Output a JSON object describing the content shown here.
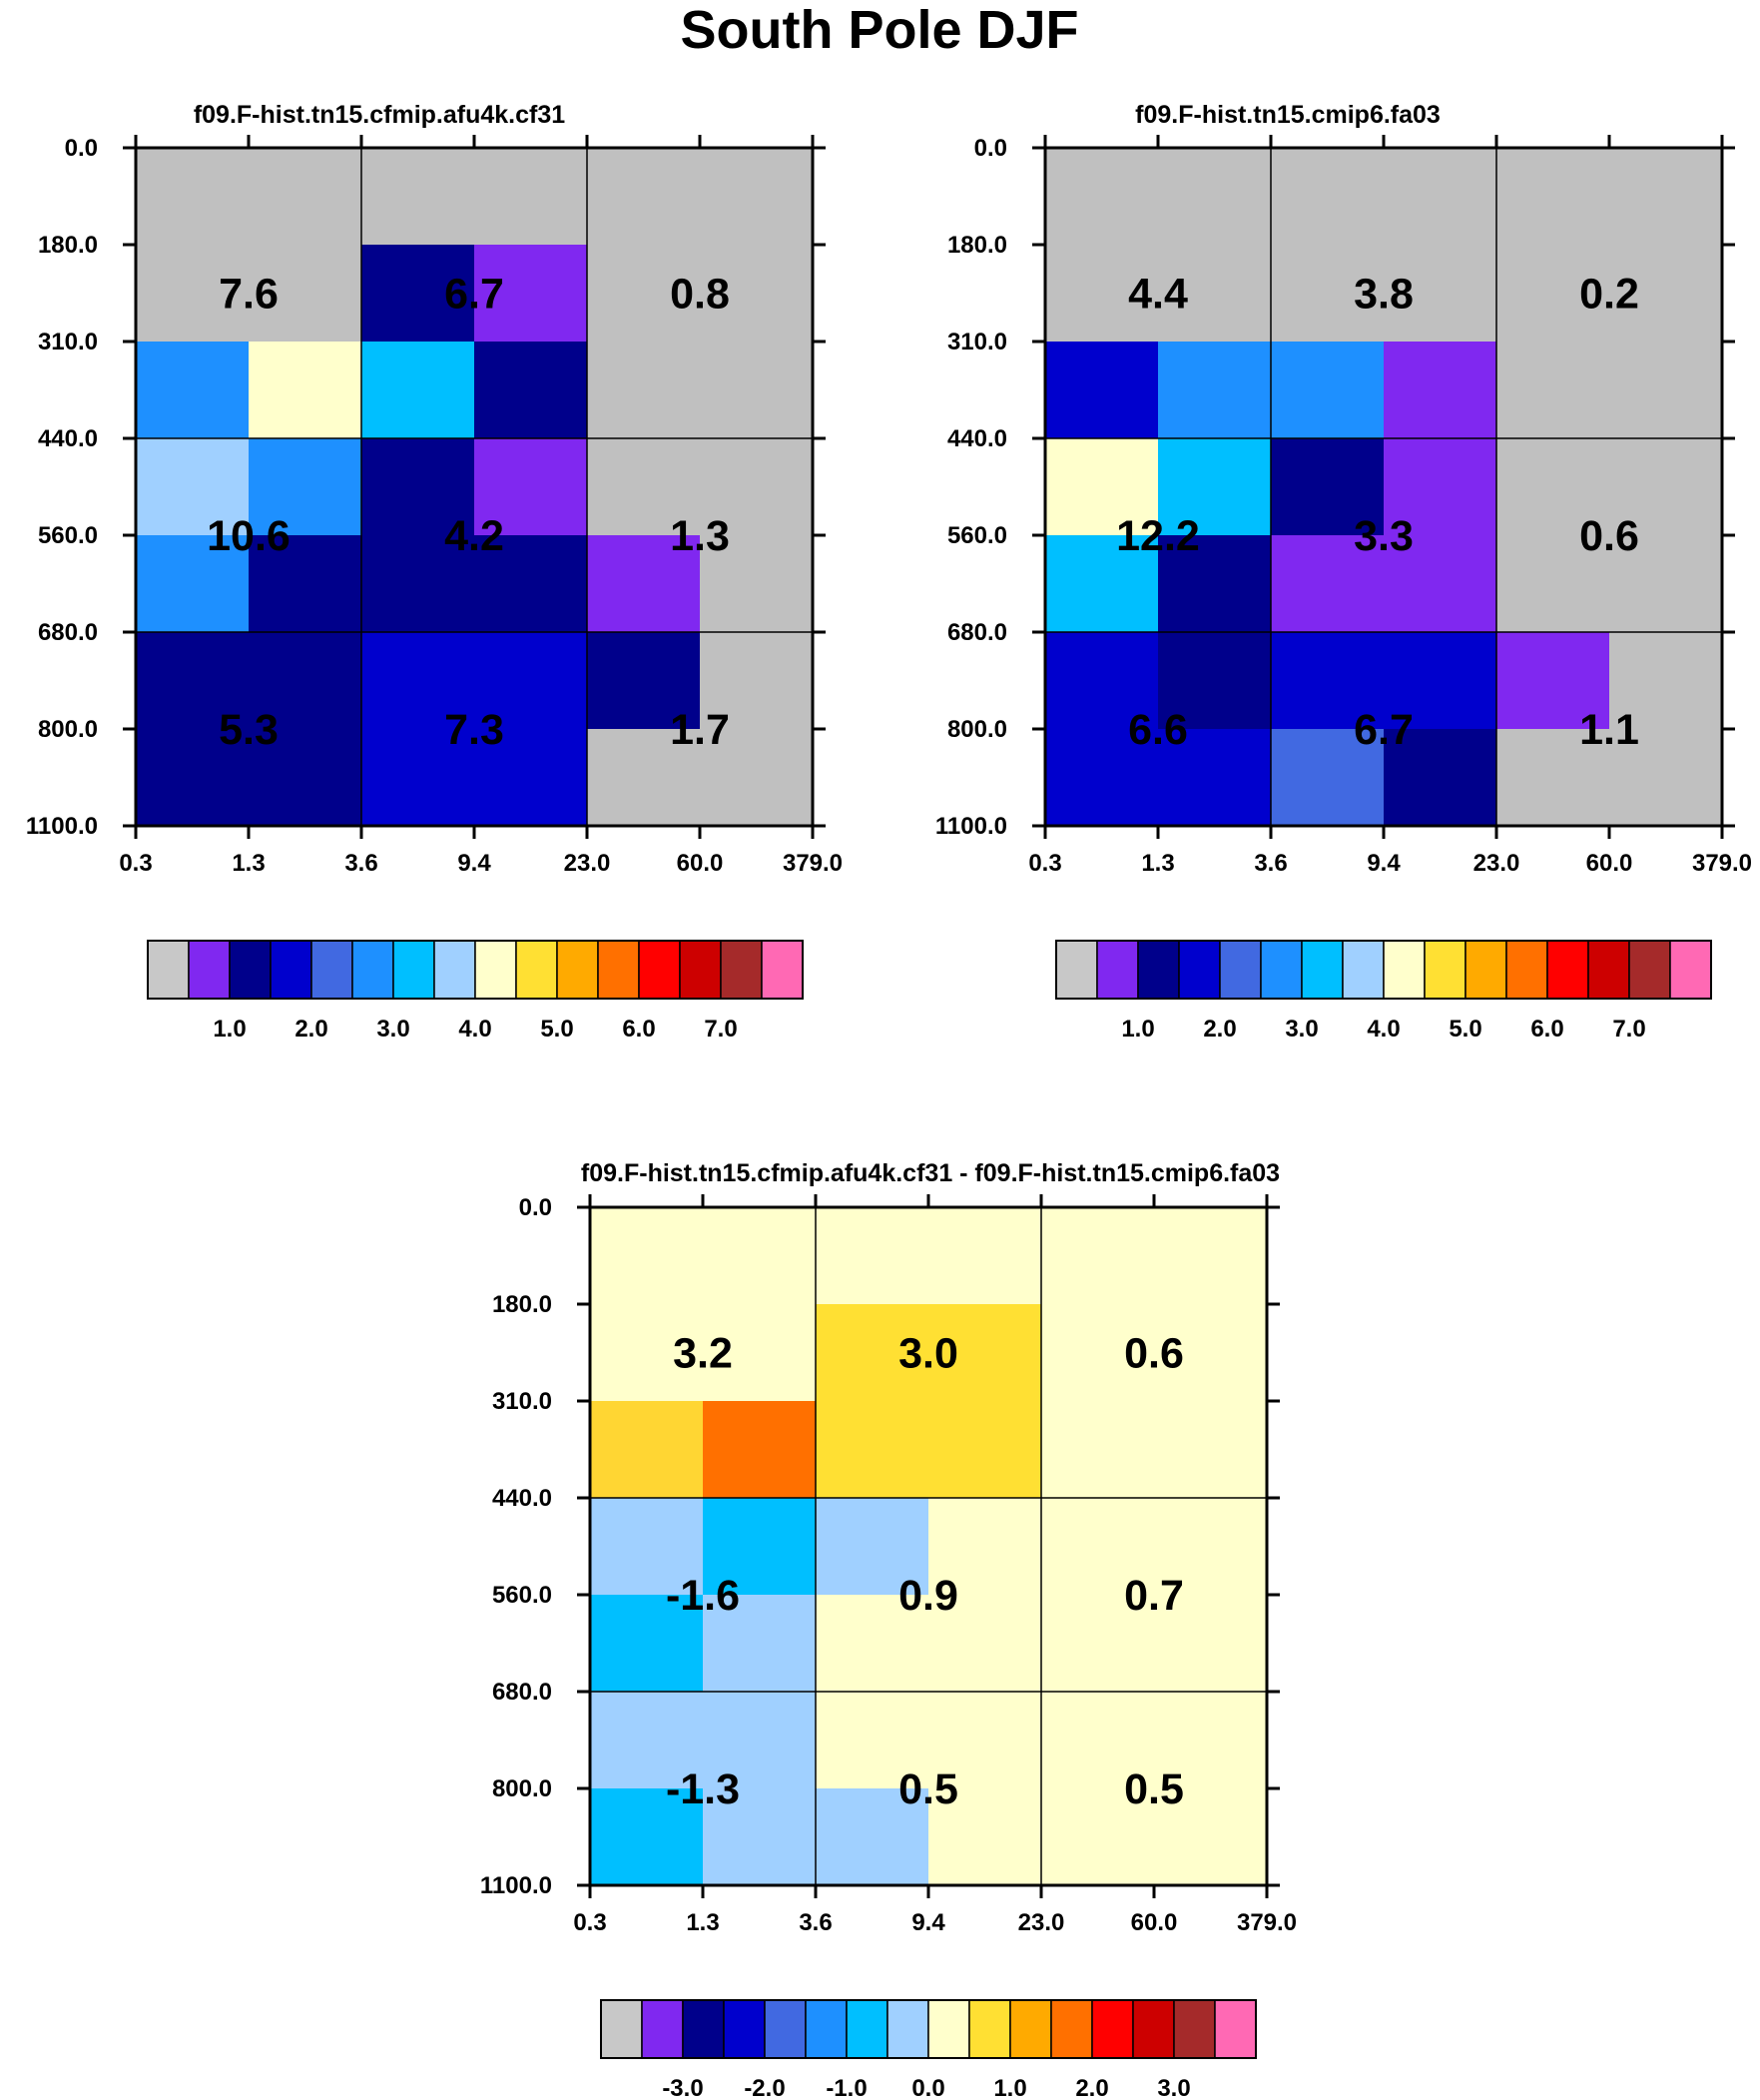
{
  "figure_title": "South Pole DJF",
  "chart_data": {
    "type": "heatmap",
    "x_tick_labels": [
      "0.3",
      "1.3",
      "3.6",
      "9.4",
      "23.0",
      "60.0",
      "379.0"
    ],
    "y_tick_labels": [
      "0.0",
      "180.0",
      "310.0",
      "440.0",
      "560.0",
      "680.0",
      "800.0",
      "1100.0"
    ],
    "panels": [
      {
        "title": "f09.F-hist.tn15.cfmip.afu4k.cf31",
        "cells": [
          [
            "#c0c0c0",
            "#c0c0c0",
            "#c0c0c0",
            "#c0c0c0",
            "#c0c0c0",
            "#c0c0c0"
          ],
          [
            "#c0c0c0",
            "#c0c0c0",
            "#00008b",
            "#8028f0",
            "#c0c0c0",
            "#c0c0c0"
          ],
          [
            "#1e90ff",
            "#ffffcc",
            "#00bfff",
            "#00008b",
            "#c0c0c0",
            "#c0c0c0"
          ],
          [
            "#a0d0ff",
            "#1e90ff",
            "#00008b",
            "#8028f0",
            "#c0c0c0",
            "#c0c0c0"
          ],
          [
            "#1e90ff",
            "#00008b",
            "#00008b",
            "#00008b",
            "#8028f0",
            "#c0c0c0"
          ],
          [
            "#00008b",
            "#00008b",
            "#0000cd",
            "#0000cd",
            "#00008b",
            "#c0c0c0"
          ],
          [
            "#00008b",
            "#00008b",
            "#0000cd",
            "#0000cd",
            "#c0c0c0",
            "#c0c0c0"
          ]
        ],
        "totals": [
          [
            "7.6",
            "6.7",
            "0.8"
          ],
          [
            "10.6",
            "4.2",
            "1.3"
          ],
          [
            "5.3",
            "7.3",
            "1.7"
          ]
        ]
      },
      {
        "title": "f09.F-hist.tn15.cmip6.fa03",
        "cells": [
          [
            "#c0c0c0",
            "#c0c0c0",
            "#c0c0c0",
            "#c0c0c0",
            "#c0c0c0",
            "#c0c0c0"
          ],
          [
            "#c0c0c0",
            "#c0c0c0",
            "#c0c0c0",
            "#c0c0c0",
            "#c0c0c0",
            "#c0c0c0"
          ],
          [
            "#0000cd",
            "#1e90ff",
            "#1e90ff",
            "#8028f0",
            "#c0c0c0",
            "#c0c0c0"
          ],
          [
            "#ffffcc",
            "#00bfff",
            "#00008b",
            "#8028f0",
            "#c0c0c0",
            "#c0c0c0"
          ],
          [
            "#00bfff",
            "#00008b",
            "#8028f0",
            "#8028f0",
            "#c0c0c0",
            "#c0c0c0"
          ],
          [
            "#0000cd",
            "#00008b",
            "#0000cd",
            "#0000cd",
            "#8028f0",
            "#c0c0c0"
          ],
          [
            "#0000cd",
            "#0000cd",
            "#4169e1",
            "#00008b",
            "#c0c0c0",
            "#c0c0c0"
          ]
        ],
        "totals": [
          [
            "4.4",
            "3.8",
            "0.2"
          ],
          [
            "12.2",
            "3.3",
            "0.6"
          ],
          [
            "6.6",
            "6.7",
            "1.1"
          ]
        ]
      },
      {
        "title": "f09.F-hist.tn15.cfmip.afu4k.cf31 - f09.F-hist.tn15.cmip6.fa03",
        "cells": [
          [
            "#ffffcc",
            "#ffffcc",
            "#ffffcc",
            "#ffffcc",
            "#ffffcc",
            "#ffffcc"
          ],
          [
            "#ffffcc",
            "#ffffcc",
            "#ffe033",
            "#ffe033",
            "#ffffcc",
            "#ffffcc"
          ],
          [
            "#ffd633",
            "#ff7000",
            "#ffe033",
            "#ffe033",
            "#ffffcc",
            "#ffffcc"
          ],
          [
            "#a0d0ff",
            "#00bfff",
            "#a0d0ff",
            "#ffffcc",
            "#ffffcc",
            "#ffffcc"
          ],
          [
            "#00bfff",
            "#a0d0ff",
            "#ffffcc",
            "#ffffcc",
            "#ffffcc",
            "#ffffcc"
          ],
          [
            "#a0d0ff",
            "#a0d0ff",
            "#ffffcc",
            "#ffffcc",
            "#ffffcc",
            "#ffffcc"
          ],
          [
            "#00bfff",
            "#a0d0ff",
            "#a0d0ff",
            "#ffffcc",
            "#ffffcc",
            "#ffffcc"
          ]
        ],
        "totals": [
          [
            "3.2",
            "3.0",
            "0.6"
          ],
          [
            "-1.6",
            "0.9",
            "0.7"
          ],
          [
            "-1.3",
            "0.5",
            "0.5"
          ]
        ]
      }
    ],
    "colorbars": [
      {
        "colors": [
          "#c8c8c8",
          "#8028f0",
          "#00008b",
          "#0000cd",
          "#4169e1",
          "#1e90ff",
          "#00bfff",
          "#a0d0ff",
          "#ffffcc",
          "#ffe033",
          "#ffaa00",
          "#ff7000",
          "#ff0000",
          "#cd0000",
          "#a52a2a",
          "#ff69b4"
        ],
        "labels": [
          "1.0",
          "2.0",
          "3.0",
          "4.0",
          "5.0",
          "6.0",
          "7.0"
        ]
      },
      {
        "colors": [
          "#c8c8c8",
          "#8028f0",
          "#00008b",
          "#0000cd",
          "#4169e1",
          "#1e90ff",
          "#00bfff",
          "#a0d0ff",
          "#ffffcc",
          "#ffe033",
          "#ffaa00",
          "#ff7000",
          "#ff0000",
          "#cd0000",
          "#a52a2a",
          "#ff69b4"
        ],
        "labels": [
          "1.0",
          "2.0",
          "3.0",
          "4.0",
          "5.0",
          "6.0",
          "7.0"
        ]
      },
      {
        "colors": [
          "#c8c8c8",
          "#8028f0",
          "#00008b",
          "#0000cd",
          "#4169e1",
          "#1e90ff",
          "#00bfff",
          "#a0d0ff",
          "#ffffcc",
          "#ffe033",
          "#ffaa00",
          "#ff7000",
          "#ff0000",
          "#cd0000",
          "#a52a2a",
          "#ff69b4"
        ],
        "labels": [
          "-3.0",
          "-2.0",
          "-1.0",
          "0.0",
          "1.0",
          "2.0",
          "3.0"
        ]
      }
    ]
  }
}
